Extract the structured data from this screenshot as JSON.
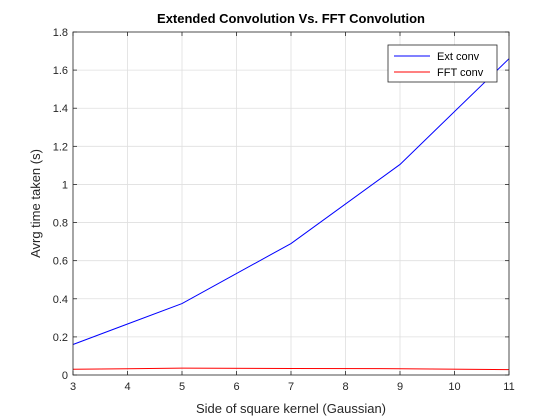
{
  "chart_data": {
    "type": "line",
    "title": "Extended Convolution Vs. FFT Convolution",
    "xlabel": "Side of square kernel (Gaussian)",
    "ylabel": "Avrg time taken (s)",
    "xlim": [
      3,
      11
    ],
    "ylim": [
      0,
      1.8
    ],
    "xticks": [
      3,
      4,
      5,
      6,
      7,
      8,
      9,
      10,
      11
    ],
    "xtick_labels": [
      "3",
      "4",
      "5",
      "6",
      "7",
      "8",
      "9",
      "10",
      "11"
    ],
    "yticks": [
      0,
      0.2,
      0.4,
      0.6,
      0.8,
      1,
      1.2,
      1.4,
      1.6,
      1.8
    ],
    "ytick_labels": [
      "0",
      "0.2",
      "0.4",
      "0.6",
      "0.8",
      "1",
      "1.2",
      "1.4",
      "1.6",
      "1.8"
    ],
    "grid": true,
    "legend_position": "top-right",
    "x": [
      3,
      5,
      7,
      9,
      11
    ],
    "series": [
      {
        "name": "Ext conv",
        "color": "#0000ff",
        "values": [
          0.16,
          0.375,
          0.69,
          1.105,
          1.66
        ]
      },
      {
        "name": "FFT conv",
        "color": "#ff0000",
        "values": [
          0.03,
          0.036,
          0.034,
          0.033,
          0.028
        ]
      }
    ]
  }
}
